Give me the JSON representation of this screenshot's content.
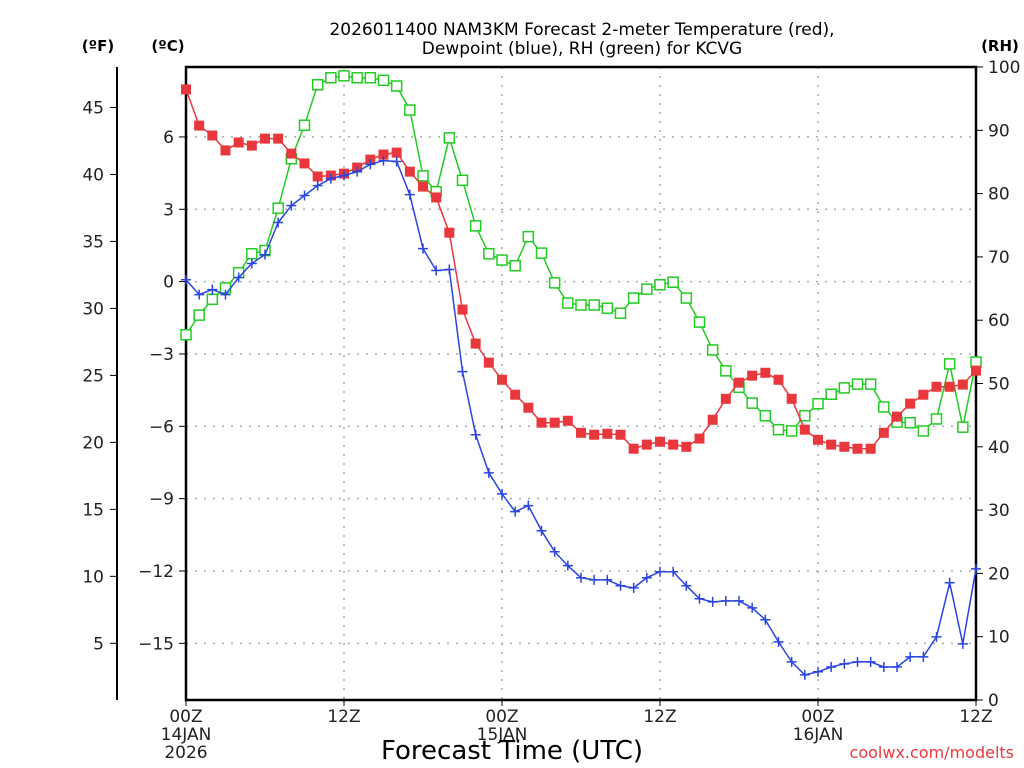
{
  "chart_data": {
    "type": "line",
    "title_line1": "2026011400 NAM3KM Forecast 2-meter Temperature (red),",
    "title_line2": "Dewpoint (blue), RH (green) for KCVG",
    "xlabel": "Forecast Time (UTC)",
    "credit": "coolwx.com/modelts",
    "x_unit": "forecast hour",
    "xlim": [
      0,
      60
    ],
    "x_ticks": [
      {
        "hour": 0,
        "line1": "00Z",
        "line2": "14JAN",
        "line3": "2026"
      },
      {
        "hour": 12,
        "line1": "12Z",
        "line2": "",
        "line3": ""
      },
      {
        "hour": 24,
        "line1": "00Z",
        "line2": "15JAN",
        "line3": ""
      },
      {
        "hour": 36,
        "line1": "12Z",
        "line2": "",
        "line3": ""
      },
      {
        "hour": 48,
        "line1": "00Z",
        "line2": "16JAN",
        "line3": ""
      },
      {
        "hour": 60,
        "line1": "12Z",
        "line2": "",
        "line3": ""
      }
    ],
    "axes": {
      "fahrenheit": {
        "label": "(ºF)",
        "ticks": [
          45,
          40,
          35,
          30,
          25,
          20,
          15,
          10,
          5
        ]
      },
      "celsius": {
        "label": "(ºC)",
        "ticks": [
          6,
          3,
          0,
          -3,
          -6,
          -9,
          -12,
          -15
        ],
        "ylim": [
          -17.35,
          8.9
        ]
      },
      "rh": {
        "label": "(RH)",
        "ticks": [
          100,
          90,
          80,
          70,
          60,
          50,
          40,
          30,
          20,
          10,
          0
        ],
        "ylim": [
          0,
          100
        ]
      }
    },
    "grid": true,
    "series": [
      {
        "name": "Temperature",
        "unit": "C",
        "axis": "celsius",
        "color": "#e8383d",
        "marker": "filled-square",
        "values": [
          7.97,
          6.47,
          6.06,
          5.44,
          5.77,
          5.64,
          5.93,
          5.93,
          5.31,
          4.9,
          4.36,
          4.4,
          4.48,
          4.73,
          5.06,
          5.27,
          5.35,
          4.56,
          3.94,
          3.49,
          2.03,
          -1.16,
          -2.57,
          -3.36,
          -4.07,
          -4.69,
          -5.23,
          -5.85,
          -5.85,
          -5.77,
          -6.27,
          -6.35,
          -6.31,
          -6.35,
          -6.93,
          -6.76,
          -6.64,
          -6.76,
          -6.85,
          -6.51,
          -5.73,
          -4.86,
          -4.19,
          -3.9,
          -3.78,
          -4.07,
          -4.86,
          -6.14,
          -6.56,
          -6.76,
          -6.85,
          -6.93,
          -6.93,
          -6.27,
          -5.6,
          -5.06,
          -4.69,
          -4.36,
          -4.36,
          -4.27,
          -3.69
        ]
      },
      {
        "name": "Dewpoint",
        "unit": "C",
        "axis": "celsius",
        "color": "#2a45e0",
        "marker": "plus",
        "values": [
          0.08,
          -0.54,
          -0.33,
          -0.54,
          0.17,
          0.75,
          1.12,
          2.45,
          3.15,
          3.57,
          3.98,
          4.27,
          4.4,
          4.56,
          4.86,
          5.02,
          4.98,
          3.61,
          1.37,
          0.46,
          0.5,
          -3.73,
          -6.35,
          -7.93,
          -8.8,
          -9.54,
          -9.29,
          -10.33,
          -11.2,
          -11.78,
          -12.28,
          -12.37,
          -12.37,
          -12.61,
          -12.7,
          -12.28,
          -12.03,
          -12.03,
          -12.61,
          -13.15,
          -13.28,
          -13.24,
          -13.24,
          -13.53,
          -14.02,
          -14.94,
          -15.77,
          -16.31,
          -16.18,
          -15.98,
          -15.85,
          -15.77,
          -15.77,
          -15.98,
          -15.98,
          -15.56,
          -15.56,
          -14.73,
          -12.49,
          -15.02,
          -11.91
        ]
      },
      {
        "name": "RH",
        "unit": "%",
        "axis": "rh",
        "color": "#22cc22",
        "marker": "open-square",
        "values": [
          57.7,
          60.8,
          63.3,
          65.1,
          67.5,
          70.5,
          71.0,
          77.7,
          85.5,
          90.8,
          97.2,
          98.3,
          98.6,
          98.3,
          98.3,
          97.9,
          97.0,
          93.2,
          82.8,
          80.3,
          88.8,
          82.1,
          74.9,
          70.5,
          69.5,
          68.6,
          73.2,
          70.6,
          65.9,
          62.7,
          62.4,
          62.4,
          61.9,
          61.1,
          63.5,
          64.9,
          65.6,
          66.0,
          63.5,
          59.7,
          55.3,
          52.0,
          49.4,
          46.9,
          44.9,
          42.7,
          42.5,
          44.9,
          46.8,
          48.3,
          49.3,
          49.9,
          49.9,
          46.3,
          43.9,
          43.8,
          42.5,
          44.4,
          53.1,
          43.1,
          53.4
        ]
      }
    ]
  }
}
